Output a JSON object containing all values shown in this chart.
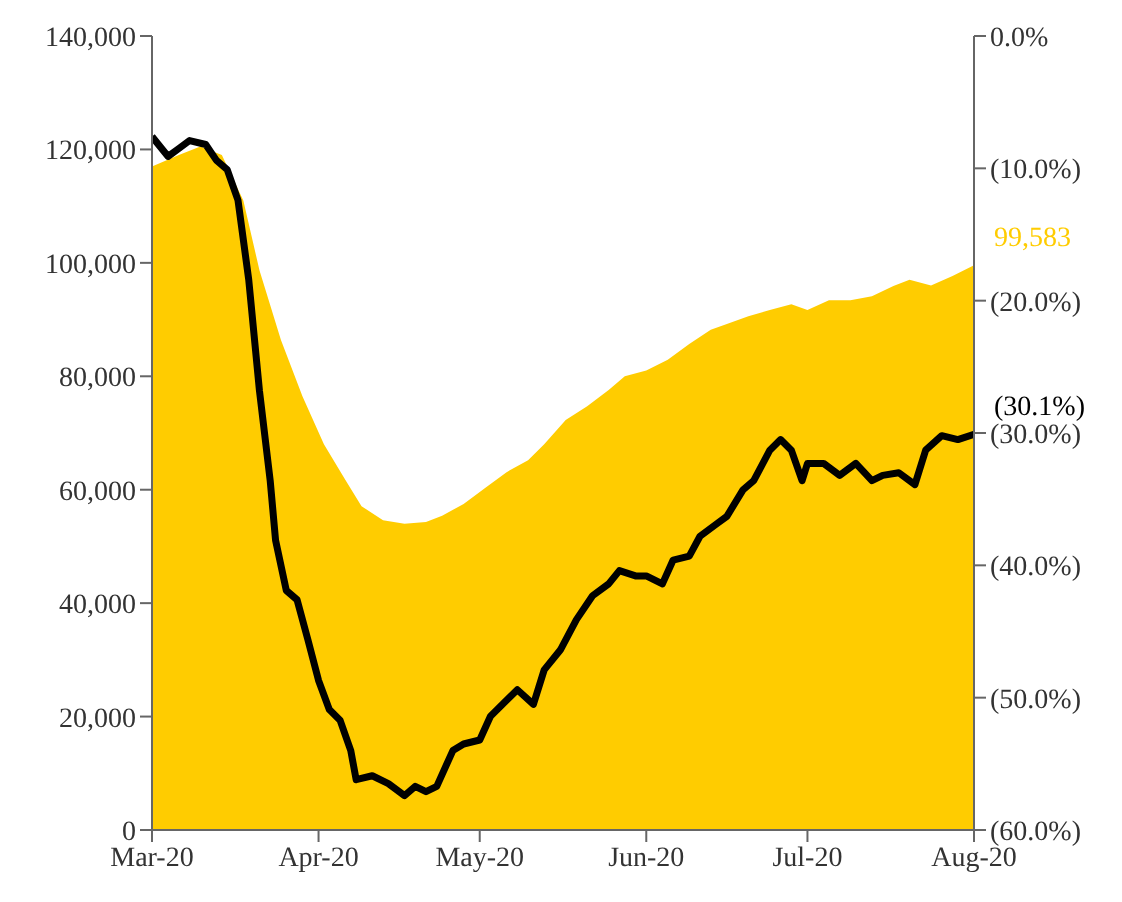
{
  "chart_data": {
    "type": "area",
    "series": [
      {
        "color": "#ffcc00",
        "x": [
          "2020-03-01",
          "2020-03-06",
          "2020-03-10",
          "2020-03-14",
          "2020-03-18",
          "2020-03-21",
          "2020-03-25",
          "2020-03-29",
          "2020-04-02",
          "2020-04-06",
          "2020-04-09",
          "2020-04-13",
          "2020-04-17",
          "2020-04-21",
          "2020-04-24",
          "2020-04-28",
          "2020-05-02",
          "2020-05-06",
          "2020-05-10",
          "2020-05-13",
          "2020-05-17",
          "2020-05-21",
          "2020-05-25",
          "2020-05-28",
          "2020-06-01",
          "2020-06-05",
          "2020-06-09",
          "2020-06-13",
          "2020-06-16",
          "2020-06-20",
          "2020-06-24",
          "2020-06-28",
          "2020-07-01",
          "2020-07-05",
          "2020-07-09",
          "2020-07-13",
          "2020-07-17",
          "2020-07-20",
          "2020-07-24",
          "2020-07-28",
          "2020-08-01"
        ],
        "values": [
          117000,
          119000,
          120500,
          119000,
          111000,
          98700,
          86400,
          76500,
          68000,
          61700,
          57100,
          54600,
          54000,
          54300,
          55400,
          57500,
          60300,
          63100,
          65200,
          68000,
          72300,
          74700,
          77600,
          80000,
          81000,
          82900,
          85700,
          88200,
          89200,
          90600,
          91700,
          92700,
          91700,
          93400,
          93400,
          94100,
          95900,
          97000,
          96000,
          97700,
          99583
        ]
      },
      {
        "type": "line",
        "axis": "y2",
        "color": "#000000",
        "x": [
          "2020-03-01",
          "2020-03-04",
          "2020-03-06",
          "2020-03-08",
          "2020-03-11",
          "2020-03-13",
          "2020-03-15",
          "2020-03-17",
          "2020-03-19",
          "2020-03-21",
          "2020-03-23",
          "2020-03-24",
          "2020-03-26",
          "2020-03-28",
          "2020-03-30",
          "2020-04-01",
          "2020-04-03",
          "2020-04-05",
          "2020-04-07",
          "2020-04-08",
          "2020-04-11",
          "2020-04-14",
          "2020-04-17",
          "2020-04-19",
          "2020-04-21",
          "2020-04-23",
          "2020-04-26",
          "2020-04-28",
          "2020-05-01",
          "2020-05-03",
          "2020-05-06",
          "2020-05-08",
          "2020-05-11",
          "2020-05-13",
          "2020-05-16",
          "2020-05-19",
          "2020-05-22",
          "2020-05-25",
          "2020-05-27",
          "2020-05-30",
          "2020-06-01",
          "2020-06-04",
          "2020-06-06",
          "2020-06-09",
          "2020-06-11",
          "2020-06-14",
          "2020-06-16",
          "2020-06-19",
          "2020-06-21",
          "2020-06-24",
          "2020-06-26",
          "2020-06-28",
          "2020-06-30",
          "2020-07-01",
          "2020-07-04",
          "2020-07-07",
          "2020-07-10",
          "2020-07-13",
          "2020-07-15",
          "2020-07-18",
          "2020-07-21",
          "2020-07-23",
          "2020-07-26",
          "2020-07-29",
          "2020-08-01"
        ],
        "values": [
          -7.6,
          -9.1,
          -8.5,
          -7.9,
          -8.2,
          -9.4,
          -10.1,
          -12.4,
          -18.4,
          -26.8,
          -33.6,
          -38.1,
          -41.9,
          -42.6,
          -45.6,
          -48.7,
          -50.9,
          -51.7,
          -54.0,
          -56.2,
          -55.9,
          -56.5,
          -57.4,
          -56.7,
          -57.1,
          -56.7,
          -54.0,
          -53.5,
          -53.2,
          -51.4,
          -50.2,
          -49.4,
          -50.5,
          -47.9,
          -46.4,
          -44.1,
          -42.3,
          -41.4,
          -40.4,
          -40.8,
          -40.8,
          -41.4,
          -39.6,
          -39.3,
          -37.8,
          -36.9,
          -36.3,
          -34.3,
          -33.6,
          -31.3,
          -30.5,
          -31.3,
          -33.6,
          -32.3,
          -32.3,
          -33.2,
          -32.3,
          -33.6,
          -33.2,
          -33.0,
          -33.9,
          -31.3,
          -30.2,
          -30.5,
          -30.1
        ]
      }
    ],
    "xlim": [
      "2020-03-01",
      "2020-08-01"
    ],
    "xticks": [
      {
        "value": "2020-03-01",
        "label": "Mar-20"
      },
      {
        "value": "2020-04-01",
        "label": "Apr-20"
      },
      {
        "value": "2020-05-01",
        "label": "May-20"
      },
      {
        "value": "2020-06-01",
        "label": "Jun-20"
      },
      {
        "value": "2020-07-01",
        "label": "Jul-20"
      },
      {
        "value": "2020-08-01",
        "label": "Aug-20"
      }
    ],
    "ylim": [
      0,
      140000
    ],
    "yticks": [
      {
        "value": 0,
        "label": "0"
      },
      {
        "value": 20000,
        "label": "20,000"
      },
      {
        "value": 40000,
        "label": "40,000"
      },
      {
        "value": 60000,
        "label": "60,000"
      },
      {
        "value": 80000,
        "label": "80,000"
      },
      {
        "value": 100000,
        "label": "100,000"
      },
      {
        "value": 120000,
        "label": "120,000"
      },
      {
        "value": 140000,
        "label": "140,000"
      }
    ],
    "y2lim": [
      -60,
      0
    ],
    "y2ticks": [
      {
        "value": 0,
        "label": "0.0%"
      },
      {
        "value": -10,
        "label": "(10.0%)"
      },
      {
        "value": -20,
        "label": "(20.0%)"
      },
      {
        "value": -30,
        "label": "(30.0%)"
      },
      {
        "value": -40,
        "label": "(40.0%)"
      },
      {
        "value": -50,
        "label": "(50.0%)"
      },
      {
        "value": -60,
        "label": "(60.0%)"
      }
    ],
    "annotations": [
      "99,583",
      "(30.1%)"
    ],
    "grid": false,
    "legend": false,
    "marker": "none"
  }
}
